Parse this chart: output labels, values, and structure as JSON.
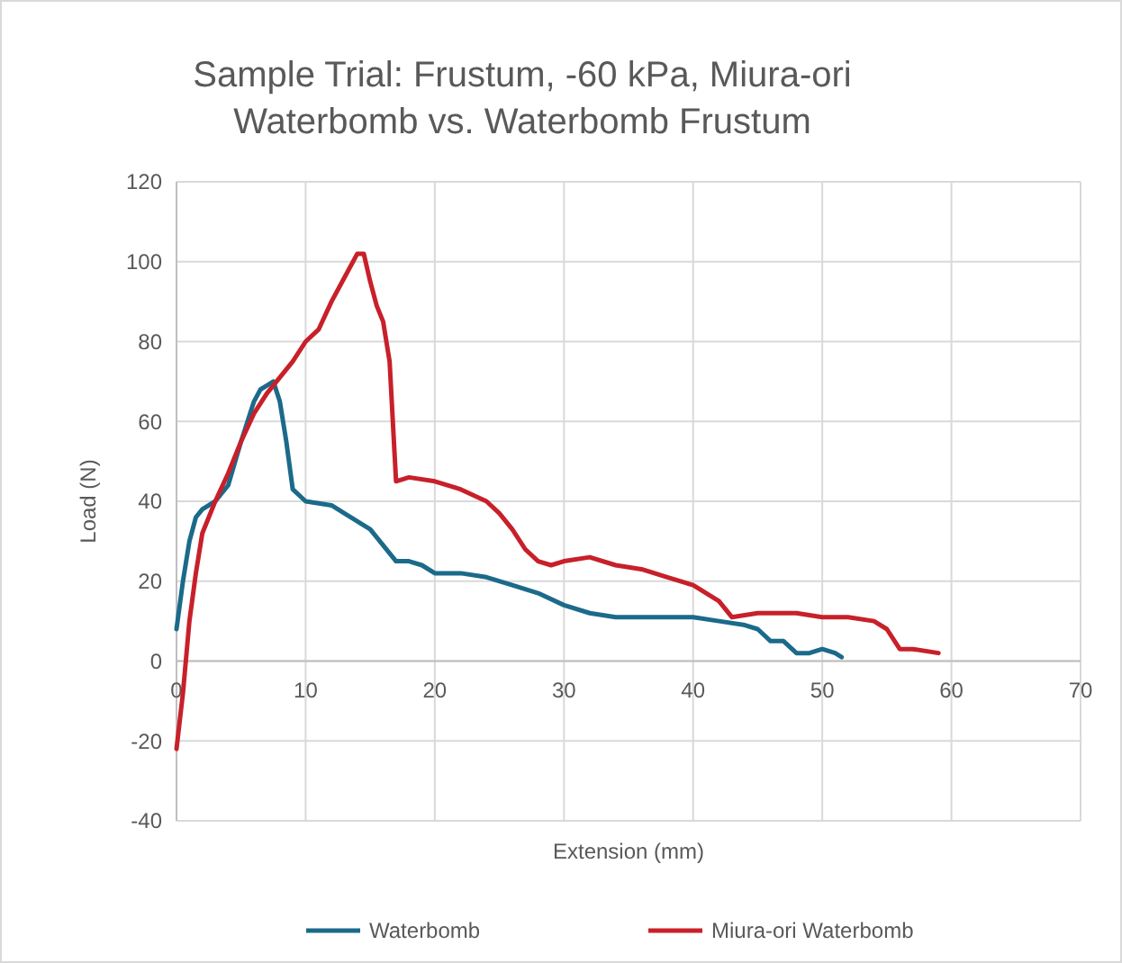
{
  "chart_data": {
    "type": "line",
    "title": "Sample Trial: Frustum, -60 kPa, Miura-ori Waterbomb vs. Waterbomb Frustum",
    "xlabel": "Extension (mm)",
    "ylabel": "Load (N)",
    "xlim": [
      0,
      70
    ],
    "xticks": [
      0,
      10,
      20,
      30,
      40,
      50,
      60,
      70
    ],
    "ylim": [
      -40,
      120
    ],
    "yticks": [
      -40,
      -20,
      0,
      20,
      40,
      60,
      80,
      100,
      120
    ],
    "grid": true,
    "legend": "bottom",
    "series": [
      {
        "name": "Waterbomb",
        "color": "#1b6a8a",
        "x": [
          0,
          0.5,
          1,
          1.5,
          2,
          3,
          4,
          5,
          6,
          6.5,
          7,
          7.5,
          8,
          8.5,
          9,
          10,
          12,
          13,
          15,
          16,
          17,
          18,
          19,
          20,
          22,
          24,
          26,
          28,
          30,
          32,
          34,
          36,
          38,
          40,
          42,
          44,
          45,
          46,
          47,
          48,
          49,
          50,
          51,
          51.5
        ],
        "values": [
          8,
          20,
          30,
          36,
          38,
          40,
          44,
          55,
          65,
          68,
          69,
          70,
          65,
          55,
          43,
          40,
          39,
          37,
          33,
          29,
          25,
          25,
          24,
          22,
          22,
          21,
          19,
          17,
          14,
          12,
          11,
          11,
          11,
          11,
          10,
          9,
          8,
          5,
          5,
          2,
          2,
          3,
          2,
          1
        ]
      },
      {
        "name": "Miura-ori Waterbomb",
        "color": "#c8202a",
        "x": [
          0,
          0.5,
          1,
          1.5,
          2,
          3,
          4,
          5,
          6,
          7,
          8,
          9,
          10,
          11,
          12,
          13,
          14,
          14.5,
          15,
          15.5,
          16,
          16.5,
          17,
          18,
          20,
          22,
          24,
          25,
          26,
          27,
          28,
          29,
          30,
          32,
          34,
          36,
          38,
          40,
          42,
          43,
          45,
          48,
          50,
          52,
          54,
          55,
          56,
          57,
          59
        ],
        "values": [
          -22,
          -8,
          10,
          22,
          32,
          40,
          47,
          55,
          62,
          67,
          71,
          75,
          80,
          83,
          90,
          96,
          102,
          102,
          95,
          89,
          85,
          75,
          45,
          46,
          45,
          43,
          40,
          37,
          33,
          28,
          25,
          24,
          25,
          26,
          24,
          23,
          21,
          19,
          15,
          11,
          12,
          12,
          11,
          11,
          10,
          8,
          3,
          3,
          2
        ]
      }
    ]
  }
}
